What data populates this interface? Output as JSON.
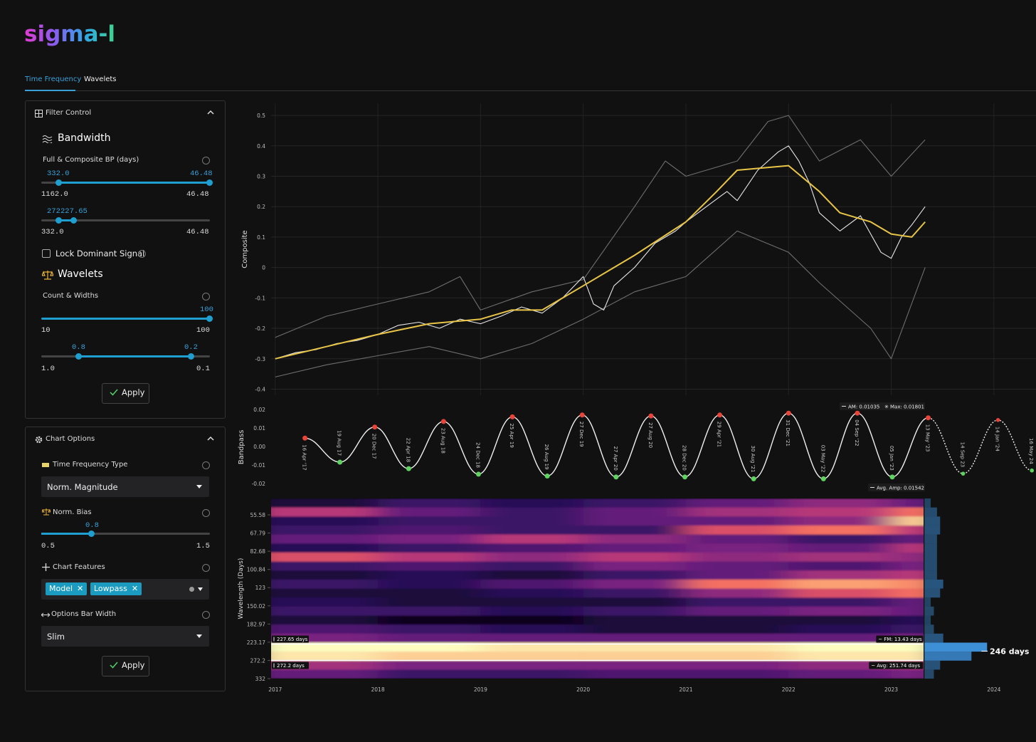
{
  "header": {
    "logo": "sigma-l"
  },
  "tabs": [
    "Time Frequency",
    "Wavelets"
  ],
  "filter_control": {
    "title": "Filter Control",
    "bandwidth": {
      "title": "Bandwidth",
      "label": "Full & Composite BP (days)",
      "slider1": {
        "low": "332.0",
        "high": "46.48",
        "min": "1162.0",
        "max": "46.48"
      },
      "slider2": {
        "low": "272",
        "high": "227.65",
        "min": "332.0",
        "max": "46.48"
      }
    },
    "lock": "Lock Dominant Signal",
    "wavelets": {
      "title": "Wavelets",
      "label": "Count & Widths",
      "slider1": {
        "high": "100",
        "min": "10",
        "max": "100"
      },
      "slider2": {
        "low": "0.8",
        "high": "0.2",
        "min": "1.0",
        "max": "0.1"
      }
    },
    "apply": "Apply"
  },
  "chart_options": {
    "title": "Chart Options",
    "type_label": "Time Frequency Type",
    "type_value": "Norm. Magnitude",
    "bias_label": "Norm. Bias",
    "bias": {
      "value": "0.8",
      "min": "0.5",
      "max": "1.5"
    },
    "features_label": "Chart Features",
    "features": [
      "Model",
      "Lowpass"
    ],
    "width_label": "Options Bar Width",
    "width_value": "Slim",
    "apply": "Apply"
  },
  "chart_data": [
    {
      "type": "line",
      "ylabel": "Composite",
      "xlim": [
        2016.96,
        2024.41
      ],
      "ylim": [
        -0.42,
        0.54
      ],
      "yticks": [
        0.5,
        0.4,
        0.3,
        0.2,
        0.1,
        0,
        -0.1,
        -0.2,
        -0.3,
        -0.4
      ],
      "grid": true,
      "series": [
        {
          "color": "#6e6e6e",
          "x": [
            2017.0,
            2017.5,
            2018.0,
            2018.5,
            2019.0,
            2019.5,
            2020.0,
            2020.5,
            2021.0,
            2021.5,
            2022.0,
            2022.3,
            2022.8,
            2023.0,
            2023.33
          ],
          "values": [
            -0.36,
            -0.32,
            -0.29,
            -0.26,
            -0.3,
            -0.25,
            -0.17,
            -0.08,
            -0.03,
            0.12,
            0.05,
            -0.05,
            -0.2,
            -0.3,
            0.0
          ]
        },
        {
          "color": "#6e6e6e",
          "x": [
            2017.0,
            2017.5,
            2018.0,
            2018.5,
            2018.8,
            2019.0,
            2019.5,
            2020.0,
            2020.5,
            2020.8,
            2021.0,
            2021.5,
            2021.8,
            2022.0,
            2022.3,
            2022.7,
            2023.0,
            2023.33
          ],
          "values": [
            -0.23,
            -0.16,
            -0.12,
            -0.08,
            -0.03,
            -0.14,
            -0.08,
            -0.04,
            0.2,
            0.35,
            0.3,
            0.35,
            0.48,
            0.5,
            0.35,
            0.42,
            0.3,
            0.42
          ]
        },
        {
          "color": "#e6e6e6",
          "x": [
            2017.0,
            2017.2,
            2017.4,
            2017.6,
            2017.8,
            2018.0,
            2018.2,
            2018.4,
            2018.6,
            2018.8,
            2019.0,
            2019.2,
            2019.4,
            2019.6,
            2019.8,
            2020.0,
            2020.1,
            2020.2,
            2020.3,
            2020.5,
            2020.7,
            2020.9,
            2021.0,
            2021.2,
            2021.4,
            2021.5,
            2021.7,
            2021.9,
            2022.0,
            2022.1,
            2022.2,
            2022.3,
            2022.5,
            2022.7,
            2022.9,
            2023.0,
            2023.1,
            2023.2,
            2023.33
          ],
          "values": [
            -0.3,
            -0.28,
            -0.27,
            -0.25,
            -0.24,
            -0.22,
            -0.19,
            -0.18,
            -0.2,
            -0.17,
            -0.185,
            -0.16,
            -0.13,
            -0.15,
            -0.1,
            -0.03,
            -0.12,
            -0.14,
            -0.06,
            0.0,
            0.08,
            0.12,
            0.15,
            0.2,
            0.25,
            0.22,
            0.32,
            0.38,
            0.4,
            0.35,
            0.28,
            0.18,
            0.12,
            0.17,
            0.05,
            0.03,
            0.1,
            0.14,
            0.2
          ]
        },
        {
          "color": "#e8c547",
          "x": [
            2017.0,
            2017.5,
            2018.0,
            2018.5,
            2019.0,
            2019.3,
            2019.6,
            2020.0,
            2020.5,
            2021.0,
            2021.3,
            2021.5,
            2022.0,
            2022.3,
            2022.5,
            2022.8,
            2023.0,
            2023.2,
            2023.33
          ],
          "values": [
            -0.3,
            -0.26,
            -0.22,
            -0.185,
            -0.17,
            -0.14,
            -0.14,
            -0.06,
            0.04,
            0.15,
            0.25,
            0.32,
            0.335,
            0.25,
            0.18,
            0.15,
            0.11,
            0.1,
            0.15
          ]
        }
      ]
    },
    {
      "type": "wave",
      "ylabel": "Bandpass",
      "xlim": [
        2016.96,
        2024.41
      ],
      "ylim": [
        -0.0235,
        0.0227
      ],
      "yticks": [
        0.02,
        0.01,
        {
          "value": 0,
          "label": "0.00"
        },
        -0.01,
        -0.02
      ],
      "color": "#f0f0f0",
      "peak_color": "#e8443a",
      "trough_color": "#5fd35f",
      "turning_points": {
        "x": [
          2017.29,
          2017.63,
          2017.97,
          2018.3,
          2018.64,
          2018.98,
          2019.31,
          2019.65,
          2019.99,
          2020.32,
          2020.66,
          2020.99,
          2021.33,
          2021.66,
          2022.0,
          2022.34,
          2022.67,
          2023.01,
          2023.36
        ],
        "values": [
          0.0045,
          -0.0085,
          0.0105,
          -0.012,
          0.0135,
          -0.015,
          0.016,
          -0.016,
          0.017,
          -0.0165,
          0.0165,
          -0.0165,
          0.017,
          -0.0175,
          0.018,
          -0.0175,
          0.018,
          -0.0165,
          0.0155
        ],
        "labels": [
          "16 Apr '17",
          "19 Aug 17",
          "20 Dec 17",
          "22 Apr 18",
          "23 Aug 18",
          "24 Dec 18",
          "25 Apr 19",
          "26 Aug 19",
          "27 Dec 19",
          "27 Apr 20",
          "27 Aug 20",
          "28 Dec 20",
          "29 Apr '21",
          "30 Aug '21",
          "31 Dec '21",
          "03 May '22",
          "04 Sep '22",
          "05 Jan '23",
          "13 May '23"
        ]
      },
      "projection": {
        "x": [
          2023.7,
          2024.04,
          2024.37
        ],
        "values": [
          -0.0147,
          0.0143,
          -0.013
        ],
        "labels": [
          "14 Sep 23",
          "14 Jan '24",
          "16 May 24"
        ]
      },
      "annotations": [
        "AM: 0.01035",
        "Max: 0.01801",
        "Avg. Amp: 0.01542"
      ]
    },
    {
      "type": "heatmap",
      "ylabel": "Wavelength (Days)",
      "log_y": true,
      "xlim": [
        2016.96,
        2024.41
      ],
      "xticks": [
        2017,
        2018,
        2019,
        2020,
        2021,
        2022,
        2023,
        2024
      ],
      "ylim": [
        332,
        46.48
      ],
      "yticks": [
        55.58,
        67.79,
        82.68,
        100.84,
        123,
        150.02,
        182.97,
        223.17,
        272.2,
        332
      ],
      "x_edges": [
        2016.96,
        2018,
        2019,
        2020,
        2021,
        2022,
        2023,
        2023.31
      ],
      "y_edges": [
        46.48,
        51.28,
        56.58,
        62.43,
        68.88,
        76.0,
        83.85,
        92.51,
        102.07,
        112.62,
        124.25,
        137.09,
        151.25,
        166.88,
        184.12,
        203.14,
        224.13,
        247.29,
        272.84,
        301.03,
        332
      ],
      "colormap": [
        "#000004",
        "#2c115f",
        "#721f81",
        "#b73779",
        "#f1605d",
        "#feb078",
        "#fcfdbf"
      ],
      "z": [
        [
          0.1,
          0.2,
          0.15,
          0.2,
          0.3,
          0.4,
          0.3
        ],
        [
          0.5,
          0.3,
          0.2,
          0.3,
          0.45,
          0.5,
          0.7
        ],
        [
          0.15,
          0.2,
          0.2,
          0.3,
          0.3,
          0.4,
          0.9
        ],
        [
          0.2,
          0.25,
          0.2,
          0.2,
          0.6,
          0.7,
          0.5
        ],
        [
          0.3,
          0.35,
          0.5,
          0.4,
          0.3,
          0.2,
          0.3
        ],
        [
          0.15,
          0.2,
          0.25,
          0.3,
          0.35,
          0.3,
          0.5
        ],
        [
          0.6,
          0.5,
          0.4,
          0.5,
          0.4,
          0.45,
          0.4
        ],
        [
          0.2,
          0.25,
          0.2,
          0.35,
          0.3,
          0.25,
          0.35
        ],
        [
          0.1,
          0.15,
          0.1,
          0.2,
          0.3,
          0.45,
          0.5
        ],
        [
          0.2,
          0.15,
          0.25,
          0.35,
          0.7,
          0.8,
          0.75
        ],
        [
          0.1,
          0.1,
          0.15,
          0.2,
          0.4,
          0.6,
          0.7
        ],
        [
          0.15,
          0.1,
          0.1,
          0.1,
          0.2,
          0.2,
          0.3
        ],
        [
          0.2,
          0.2,
          0.15,
          0.2,
          0.3,
          0.35,
          0.3
        ],
        [
          0.1,
          0.05,
          0.05,
          0.1,
          0.1,
          0.1,
          0.15
        ],
        [
          0.25,
          0.2,
          0.15,
          0.1,
          0.1,
          0.15,
          0.2
        ],
        [
          0.35,
          0.3,
          0.3,
          0.3,
          0.3,
          0.3,
          0.35
        ],
        [
          1,
          1,
          0.95,
          0.95,
          0.95,
          1,
          1
        ],
        [
          0.95,
          0.9,
          0.9,
          0.9,
          0.9,
          0.95,
          0.95
        ],
        [
          0.45,
          0.35,
          0.35,
          0.35,
          0.35,
          0.4,
          0.5
        ],
        [
          0.3,
          0.2,
          0.2,
          0.25,
          0.25,
          0.3,
          0.35
        ]
      ],
      "spectrum": [
        0.1,
        0.2,
        0.25,
        0.25,
        0.2,
        0.2,
        0.2,
        0.2,
        0.2,
        0.3,
        0.25,
        0.1,
        0.15,
        0.1,
        0.15,
        0.3,
        1.0,
        0.75,
        0.25,
        0.15
      ],
      "spectrum_color": "#3d8fd6",
      "band": [
        {
          "value": 227.65,
          "label": "227.65 days"
        },
        {
          "value": 272.2,
          "label": "272.2 days"
        }
      ],
      "peak": {
        "value": 246,
        "label": "246 days"
      },
      "annotations": [
        "FM: 13.43 days",
        "Avg: 251.74 days"
      ]
    }
  ]
}
